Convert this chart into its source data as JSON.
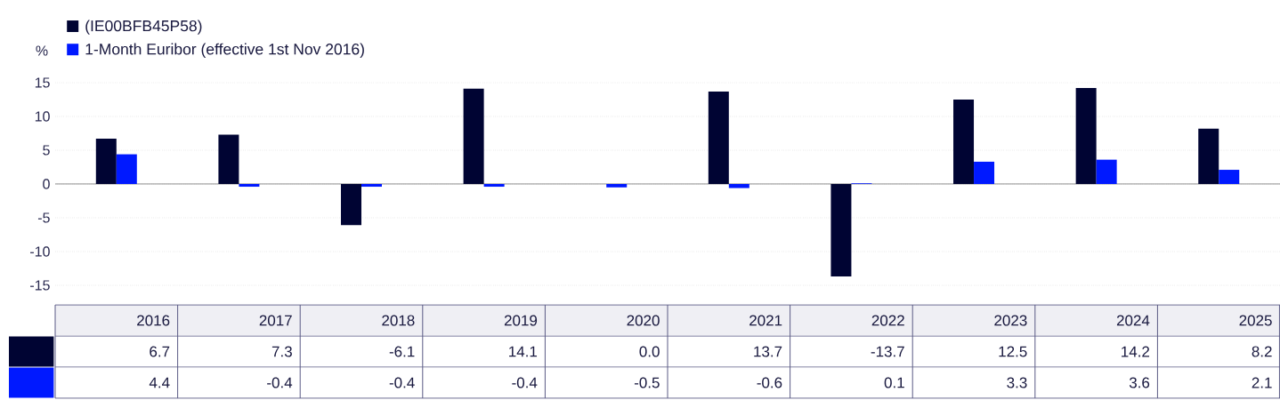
{
  "chart_data": {
    "type": "bar",
    "ylabel": "%",
    "categories": [
      "2016",
      "2017",
      "2018",
      "2019",
      "2020",
      "2021",
      "2022",
      "2023",
      "2024",
      "2025"
    ],
    "series": [
      {
        "name": "(IE00BFB45P58)",
        "color": "#000433",
        "values": [
          6.7,
          7.3,
          -6.1,
          14.1,
          0.0,
          13.7,
          -13.7,
          12.5,
          14.2,
          8.2
        ],
        "value_labels": [
          "6.7",
          "7.3",
          "-6.1",
          "14.1",
          "0.0",
          "13.7",
          "-13.7",
          "12.5",
          "14.2",
          "8.2"
        ]
      },
      {
        "name": "1-Month Euribor (effective 1st Nov 2016)",
        "color": "#0019ff",
        "values": [
          4.4,
          -0.4,
          -0.4,
          -0.4,
          -0.5,
          -0.6,
          0.1,
          3.3,
          3.6,
          2.1
        ],
        "value_labels": [
          "4.4",
          "-0.4",
          "-0.4",
          "-0.4",
          "-0.5",
          "-0.6",
          "0.1",
          "3.3",
          "3.6",
          "2.1"
        ]
      }
    ],
    "ylim": [
      -15,
      15
    ],
    "yticks": [
      -15,
      -10,
      -5,
      0,
      5,
      10,
      15
    ],
    "grid": "y",
    "legend": "top left"
  }
}
